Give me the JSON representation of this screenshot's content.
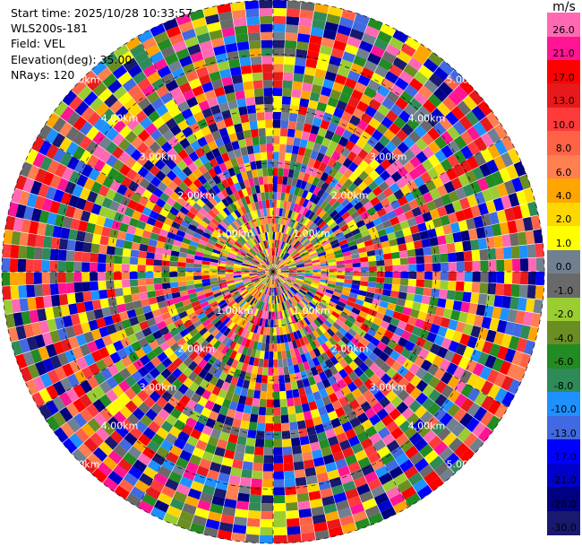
{
  "info": {
    "start_time": "Start time: 2025/10/28 10:33:57",
    "instrument": "WLS200s-181",
    "field": "Field: VEL",
    "elevation": "Elevation(deg): 35.00",
    "nrays": "NRays: 120"
  },
  "colorbar": {
    "title": "m/s",
    "labels": [
      "26.0",
      "21.0",
      "17.0",
      "13.0",
      "10.0",
      "8.0",
      "6.0",
      "4.0",
      "2.0",
      "1.0",
      "0.0",
      "-1.0",
      "-2.0",
      "-4.0",
      "-6.0",
      "-8.0",
      "-10.0",
      "-13.0",
      "-17.0",
      "-21.0",
      "-26.0",
      "-30.0"
    ],
    "colors": [
      "#ff69b4",
      "#ff1493",
      "#ff0000",
      "#e8191a",
      "#ff3a3a",
      "#ff6347",
      "#ff7f50",
      "#ffa500",
      "#ffd700",
      "#ffff00",
      "#708090",
      "#696969",
      "#9acd32",
      "#6b8e23",
      "#228b22",
      "#2e8b57",
      "#1e90ff",
      "#4169e1",
      "#0000ff",
      "#0000cd",
      "#000080",
      "#191970"
    ]
  },
  "chart_data": {
    "type": "heatmap",
    "projection": "polar-ppi",
    "field": "VEL",
    "units": "m/s",
    "nrays": 120,
    "range_unit": "km",
    "range_max_km": 5.0,
    "range_rings_km": [
      1.0,
      2.0,
      3.0,
      4.0,
      5.0
    ],
    "range_ring_labels": [
      "1.00km",
      "2.00km",
      "3.00km",
      "4.00km",
      "5.00km"
    ],
    "value_range": [
      -30.0,
      26.0
    ],
    "grid": true
  }
}
